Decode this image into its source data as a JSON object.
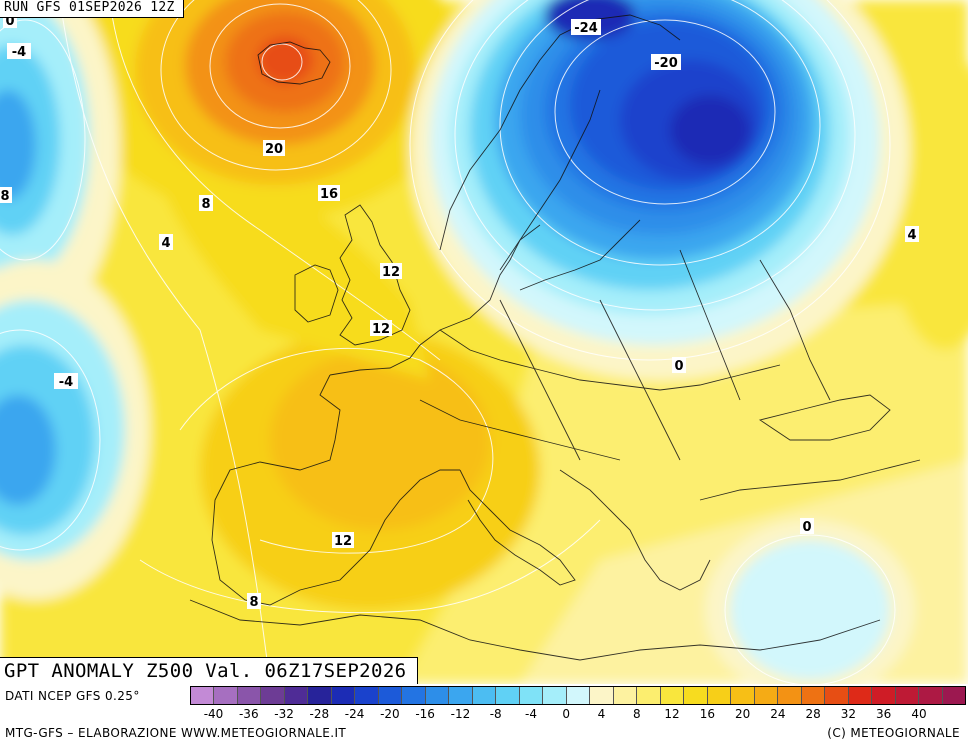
{
  "header": {
    "run_label": "RUN GFS 01SEP2026 12Z"
  },
  "map": {
    "title": "GPT ANOMALY Z500 Val. 06Z17SEP2026",
    "contour_labels": [
      "-24",
      "-20",
      "-4",
      "-4",
      "0",
      "0",
      "0",
      "4",
      "4",
      "8",
      "8",
      "8",
      "12",
      "12",
      "12",
      "16",
      "20"
    ]
  },
  "colorbar": {
    "colors": [
      "#c38ad6",
      "#a66fc0",
      "#8a55aa",
      "#6d3c95",
      "#4f2c96",
      "#27239a",
      "#1c2cb5",
      "#1a42cc",
      "#1c5ad9",
      "#2374e3",
      "#2d8ee9",
      "#3ba6ef",
      "#4cbdf2",
      "#60d1f5",
      "#7fe2f7",
      "#a5eefa",
      "#d2f7fc",
      "#fcf5c8",
      "#fdf2a0",
      "#fcee6f",
      "#f9e63d",
      "#f7dc1f",
      "#f7cf18",
      "#f7bf16",
      "#f5ab15",
      "#f39214",
      "#ee7213",
      "#e74e14",
      "#de2a18",
      "#cf1c26",
      "#be1a35",
      "#ad1944",
      "#9c1850"
    ],
    "tick_labels": [
      "-40",
      "-36",
      "-32",
      "-28",
      "-24",
      "-20",
      "-16",
      "-12",
      "-8",
      "-4",
      "0",
      "4",
      "8",
      "12",
      "16",
      "20",
      "24",
      "28",
      "32",
      "36",
      "40"
    ]
  },
  "footer": {
    "data_source": "DATI NCEP GFS 0.25°",
    "credit_left": "MTG-GFS – ELABORAZIONE WWW.METEOGIORNALE.IT",
    "credit_right": "(C) METEOGIORNALE"
  }
}
